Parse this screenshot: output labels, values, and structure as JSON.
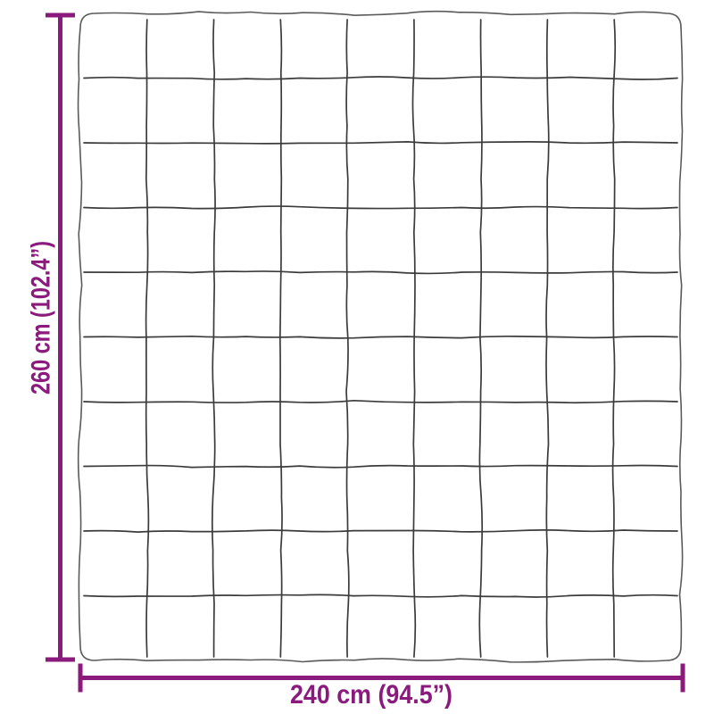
{
  "diagram": {
    "type": "product-dimension-diagram",
    "subject": "blanket-top-view-quilted-grid",
    "colors": {
      "dimension_accent": "#8A1B7D",
      "outline": "#5A5A5A",
      "grid_line": "#3B3B3B",
      "background": "#FFFFFF"
    },
    "blanket_grid": {
      "columns": 9,
      "rows": 10
    },
    "dimensions": {
      "height": {
        "label": "260 cm (102.4”)",
        "value_cm": "260",
        "value_inches": "102.4"
      },
      "width": {
        "label": "240 cm (94.5”)",
        "value_cm": "240",
        "value_inches": "94.5"
      }
    }
  }
}
